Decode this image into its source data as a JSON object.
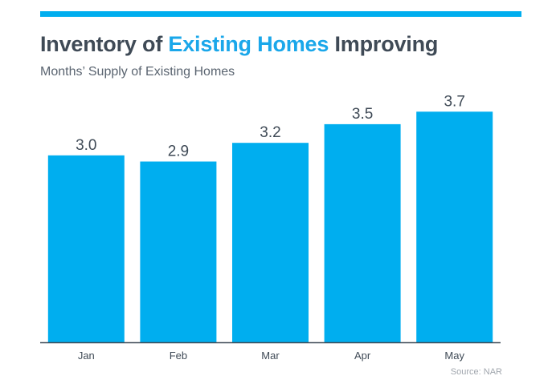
{
  "header": {
    "title_part1": "Inventory of ",
    "title_accent": "Existing Homes",
    "title_part2": " Improving",
    "subtitle": "Months’ Supply of Existing Homes"
  },
  "footer": {
    "source": "Source: NAR"
  },
  "colors": {
    "accent": "#00aeef",
    "bar": "#00aeef",
    "text": "#3f4a56",
    "axis": "#3f4a56"
  },
  "chart_data": {
    "type": "bar",
    "title": "Inventory of Existing Homes Improving",
    "subtitle": "Months’ Supply of Existing Homes",
    "categories": [
      "Jan",
      "Feb",
      "Mar",
      "Apr",
      "May"
    ],
    "values": [
      3.0,
      2.9,
      3.2,
      3.5,
      3.7
    ],
    "value_labels": [
      "3.0",
      "2.9",
      "3.2",
      "3.5",
      "3.7"
    ],
    "ylim": [
      0,
      4.0
    ],
    "grid": false,
    "legend": "none"
  }
}
